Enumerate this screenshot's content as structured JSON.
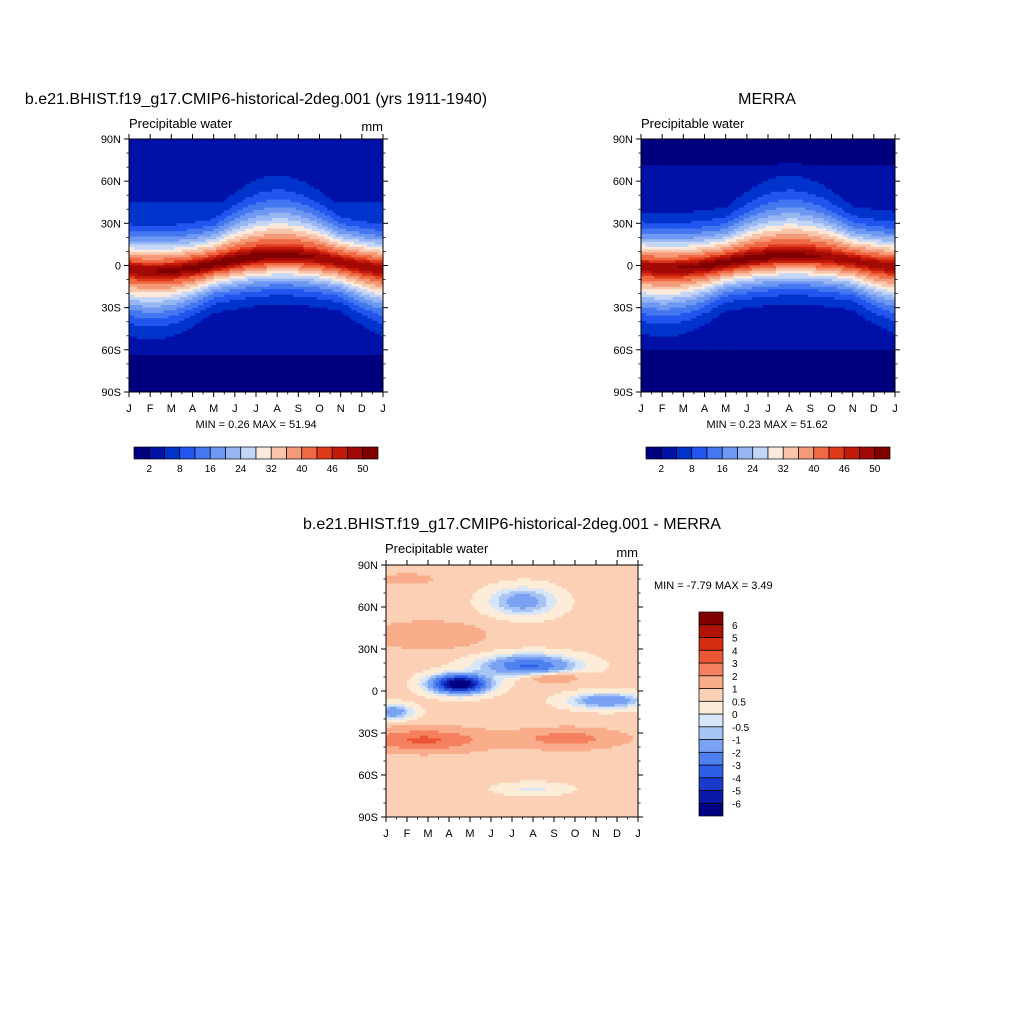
{
  "chart_data": [
    {
      "type": "heatmap",
      "title": "b.e21.BHIST.f19_g17.CMIP6-historical-2deg.001 (yrs 1911-1940)",
      "subtitle": "Precipitable water",
      "units": "mm",
      "x_ticks": [
        "J",
        "F",
        "M",
        "A",
        "M",
        "J",
        "J",
        "A",
        "S",
        "O",
        "N",
        "D",
        "J"
      ],
      "y_ticks": [
        "90N",
        "60N",
        "30N",
        "0",
        "30S",
        "60S",
        "90S"
      ],
      "ylim": [
        -90,
        90
      ],
      "stats": {
        "min_label": "MIN =",
        "min": "0.26",
        "max_label": "MAX =",
        "max": "51.94"
      },
      "field": {
        "itcz_peak": 51.9,
        "itcz_lat_mean": 2,
        "itcz_lat_amp": 5.5,
        "polar_north": 2.0,
        "polar_south": 0.8
      },
      "colorbar": {
        "orientation": "horizontal",
        "levels": [
          2,
          4,
          8,
          12,
          16,
          20,
          24,
          28,
          32,
          36,
          40,
          44,
          46,
          48,
          50
        ],
        "labels": [
          "2",
          "8",
          "16",
          "24",
          "32",
          "40",
          "46",
          "50"
        ]
      }
    },
    {
      "type": "heatmap",
      "title": "MERRA",
      "subtitle": "Precipitable water",
      "units": "",
      "x_ticks": [
        "J",
        "F",
        "M",
        "A",
        "M",
        "J",
        "J",
        "A",
        "S",
        "O",
        "N",
        "D",
        "J"
      ],
      "y_ticks": [
        "90N",
        "60N",
        "30N",
        "0",
        "30S",
        "60S",
        "90S"
      ],
      "ylim": [
        -90,
        90
      ],
      "stats": {
        "min_label": "MIN =",
        "min": "0.23",
        "max_label": "MAX =",
        "max": "51.62"
      },
      "field": {
        "itcz_peak": 51.6,
        "itcz_lat_mean": 3,
        "itcz_lat_amp": 4.5,
        "polar_north": 1.2,
        "polar_south": 0.7
      },
      "colorbar": {
        "orientation": "horizontal",
        "levels": [
          2,
          4,
          8,
          12,
          16,
          20,
          24,
          28,
          32,
          36,
          40,
          44,
          46,
          48,
          50
        ],
        "labels": [
          "2",
          "8",
          "16",
          "24",
          "32",
          "40",
          "46",
          "50"
        ]
      }
    },
    {
      "type": "heatmap",
      "title": "b.e21.BHIST.f19_g17.CMIP6-historical-2deg.001 - MERRA",
      "subtitle": "Precipitable water",
      "units": "mm",
      "x_ticks": [
        "J",
        "F",
        "M",
        "A",
        "M",
        "J",
        "J",
        "A",
        "S",
        "O",
        "N",
        "D",
        "J"
      ],
      "y_ticks": [
        "90N",
        "60N",
        "30N",
        "0",
        "30S",
        "60S",
        "90S"
      ],
      "ylim": [
        -90,
        90
      ],
      "stats": {
        "min_label": "MIN =",
        "min": "-7.79",
        "max_label": "MAX =",
        "max": "3.49"
      },
      "colorbar": {
        "orientation": "vertical",
        "levels": [
          -6,
          -5,
          -4,
          -3,
          -2,
          -1,
          -0.5,
          0,
          0.5,
          1,
          2,
          3,
          4,
          5,
          6
        ],
        "labels": [
          "-6",
          "-5",
          "-4",
          "-3",
          "-2",
          "-1",
          "-0.5",
          "0",
          "0.5",
          "1",
          "2",
          "3",
          "4",
          "5",
          "6"
        ]
      }
    }
  ],
  "colors": {
    "sequential": [
      "#00007f",
      "#0011a8",
      "#0033cc",
      "#2255ee",
      "#4477f0",
      "#6e98f2",
      "#98b6f4",
      "#c4d6f7",
      "#fbe9dc",
      "#f8c4aa",
      "#f59a78",
      "#f06a46",
      "#e03a1c",
      "#c41a0a",
      "#a30a05",
      "#800000"
    ],
    "diverging": [
      "#000080",
      "#0a1aa8",
      "#1a3acc",
      "#2e5ee8",
      "#4e80f0",
      "#7aa2f2",
      "#a8c4f5",
      "#d6e6f8",
      "#fdecd8",
      "#fbd0b4",
      "#f8ac8a",
      "#f48060",
      "#ec5634",
      "#d42c10",
      "#b01205",
      "#800000"
    ]
  }
}
